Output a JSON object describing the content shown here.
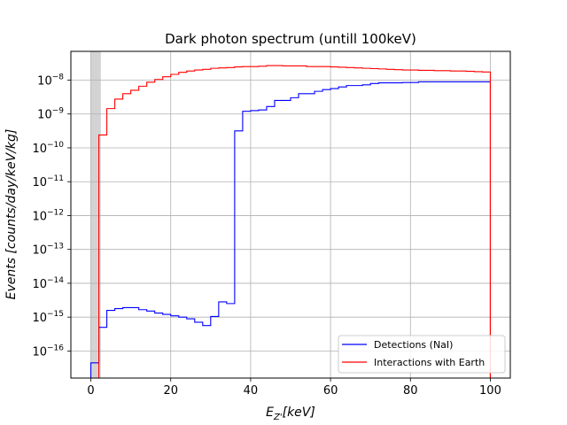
{
  "chart_data": {
    "type": "line",
    "step": true,
    "title": "Dark photon spectrum (untill 100keV)",
    "xlabel": "E_{Z'}[keV]",
    "ylabel": "Events [counts/day/keV/kg]",
    "xlim": [
      -5,
      105
    ],
    "ylim_log10": [
      -16.8,
      -7.15
    ],
    "yscale": "log",
    "grid": true,
    "legend_position": "lower-right",
    "x_ticks": [
      "0",
      "20",
      "40",
      "60",
      "80",
      "100"
    ],
    "x_tick_values": [
      0,
      20,
      40,
      60,
      80,
      100
    ],
    "y_ticks": [
      {
        "base": "10",
        "exp": "−16",
        "value": -16
      },
      {
        "base": "10",
        "exp": "−15",
        "value": -15
      },
      {
        "base": "10",
        "exp": "−14",
        "value": -14
      },
      {
        "base": "10",
        "exp": "−13",
        "value": -13
      },
      {
        "base": "10",
        "exp": "−12",
        "value": -12
      },
      {
        "base": "10",
        "exp": "−11",
        "value": -11
      },
      {
        "base": "10",
        "exp": "−10",
        "value": -10
      },
      {
        "base": "10",
        "exp": "−9",
        "value": -9
      },
      {
        "base": "10",
        "exp": "−8",
        "value": -8
      }
    ],
    "shaded_region": {
      "x": [
        0,
        2.5
      ],
      "color": "#d3d3d3"
    },
    "series": [
      {
        "name": "Detections (NaI)",
        "color": "#0000ff",
        "x": [
          2,
          4,
          6,
          8,
          10,
          12,
          14,
          16,
          18,
          20,
          22,
          24,
          26,
          28,
          30,
          32,
          34,
          36,
          38,
          40,
          42,
          44,
          46,
          48,
          50,
          52,
          54,
          56,
          58,
          60,
          62,
          64,
          66,
          68,
          70,
          72,
          74,
          76,
          78,
          80,
          82,
          84,
          86,
          88,
          90,
          92,
          94,
          96,
          98,
          100
        ],
        "log10": [
          -16.35,
          -15.3,
          -14.8,
          -14.75,
          -14.72,
          -14.72,
          -14.78,
          -14.82,
          -14.88,
          -14.92,
          -14.96,
          -15.0,
          -15.05,
          -15.15,
          -15.25,
          -14.98,
          -14.55,
          -14.6,
          -9.5,
          -8.92,
          -8.9,
          -8.88,
          -8.78,
          -8.6,
          -8.6,
          -8.52,
          -8.4,
          -8.4,
          -8.33,
          -8.28,
          -8.25,
          -8.2,
          -8.16,
          -8.16,
          -8.14,
          -8.1,
          -8.08,
          -8.08,
          -8.08,
          -8.07,
          -8.07,
          -8.05,
          -8.05,
          -8.05,
          -8.05,
          -8.05,
          -8.05,
          -8.05,
          -8.05,
          -8.05
        ]
      },
      {
        "name": "Interactions with Earth",
        "color": "#ff0000",
        "x": [
          4,
          6,
          8,
          10,
          12,
          14,
          16,
          18,
          20,
          22,
          24,
          26,
          28,
          30,
          32,
          34,
          36,
          38,
          40,
          42,
          44,
          46,
          48,
          50,
          52,
          54,
          56,
          58,
          60,
          62,
          64,
          66,
          68,
          70,
          72,
          74,
          76,
          78,
          80,
          82,
          84,
          86,
          88,
          90,
          92,
          94,
          96,
          98,
          100
        ],
        "log10": [
          -9.62,
          -8.84,
          -8.56,
          -8.4,
          -8.3,
          -8.18,
          -8.06,
          -7.98,
          -7.9,
          -7.83,
          -7.77,
          -7.73,
          -7.7,
          -7.68,
          -7.65,
          -7.64,
          -7.63,
          -7.61,
          -7.6,
          -7.6,
          -7.59,
          -7.57,
          -7.57,
          -7.58,
          -7.58,
          -7.58,
          -7.6,
          -7.6,
          -7.6,
          -7.61,
          -7.62,
          -7.63,
          -7.64,
          -7.65,
          -7.66,
          -7.67,
          -7.68,
          -7.69,
          -7.7,
          -7.7,
          -7.71,
          -7.71,
          -7.72,
          -7.72,
          -7.73,
          -7.73,
          -7.74,
          -7.75,
          -7.76
        ]
      }
    ]
  }
}
